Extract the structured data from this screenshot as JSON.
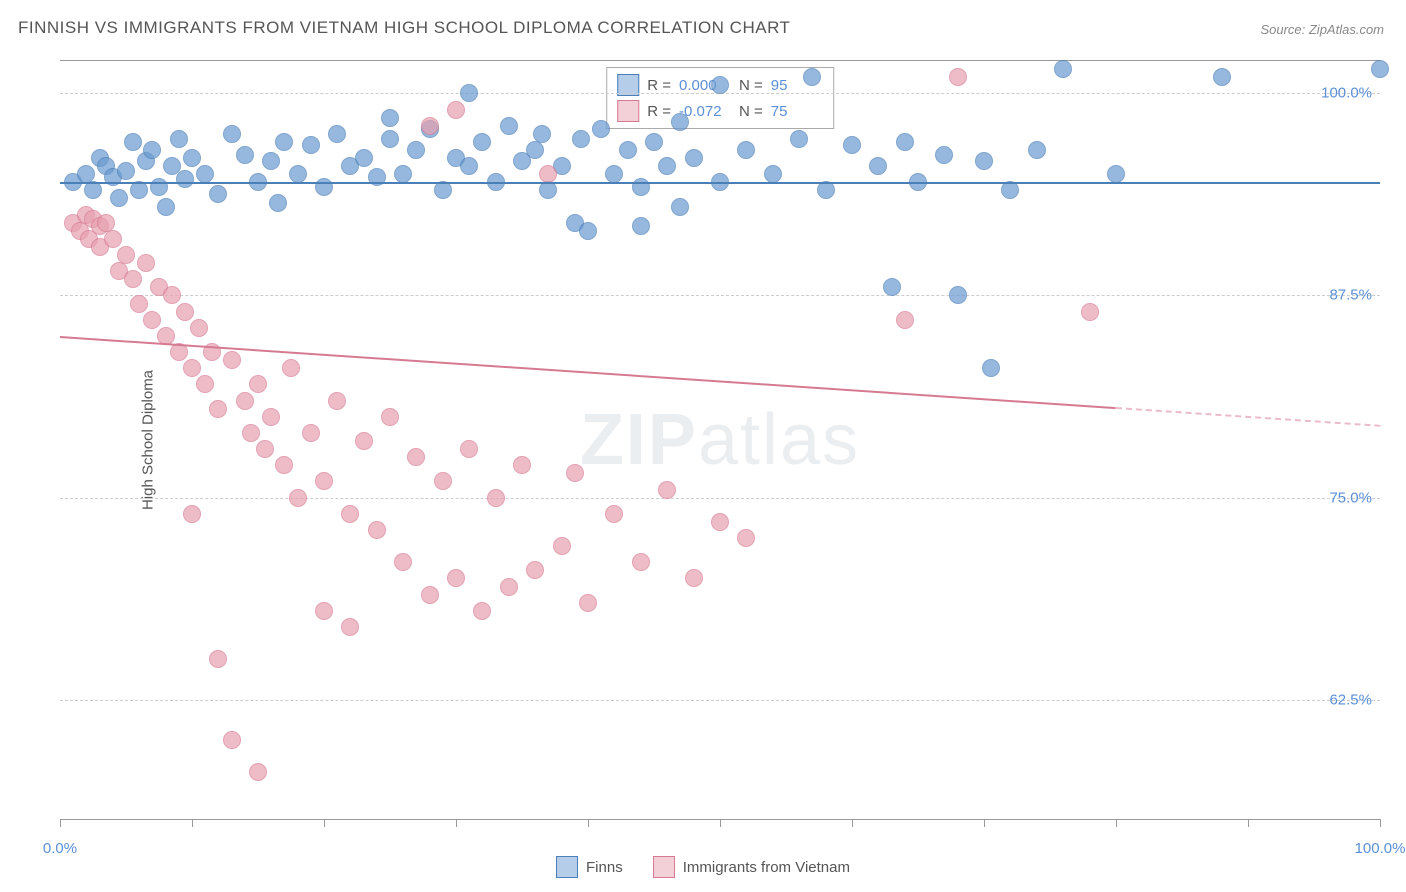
{
  "title": "FINNISH VS IMMIGRANTS FROM VIETNAM HIGH SCHOOL DIPLOMA CORRELATION CHART",
  "source": "Source: ZipAtlas.com",
  "y_axis_label": "High School Diploma",
  "watermark_bold": "ZIP",
  "watermark_light": "atlas",
  "chart": {
    "type": "scatter",
    "xlim": [
      0,
      100
    ],
    "ylim": [
      55,
      102
    ],
    "y_ticks": [
      {
        "v": 62.5,
        "label": "62.5%"
      },
      {
        "v": 75.0,
        "label": "75.0%"
      },
      {
        "v": 87.5,
        "label": "87.5%"
      },
      {
        "v": 100.0,
        "label": "100.0%"
      }
    ],
    "x_tick_positions": [
      0,
      10,
      20,
      30,
      40,
      50,
      60,
      70,
      80,
      90,
      100
    ],
    "x_tick_labels": [
      {
        "v": 0,
        "label": "0.0%"
      },
      {
        "v": 100,
        "label": "100.0%"
      }
    ],
    "grid_color": "#cccccc",
    "background_color": "#ffffff",
    "marker_radius": 9,
    "marker_stroke_width": 1.5,
    "marker_fill_opacity": 0.35,
    "series": [
      {
        "name": "Finns",
        "color": "#6b9bd1",
        "stroke": "#4a7fb8",
        "R": "0.000",
        "N": "95",
        "trend": {
          "x1": 0,
          "y1": 94.5,
          "x2": 100,
          "y2": 94.5,
          "dashed_from_x": null
        },
        "points": [
          [
            1,
            94.5
          ],
          [
            2,
            95
          ],
          [
            2.5,
            94
          ],
          [
            3,
            96
          ],
          [
            3.5,
            95.5
          ],
          [
            4,
            94.8
          ],
          [
            4.5,
            93.5
          ],
          [
            5,
            95.2
          ],
          [
            5.5,
            97
          ],
          [
            6,
            94
          ],
          [
            6.5,
            95.8
          ],
          [
            7,
            96.5
          ],
          [
            7.5,
            94.2
          ],
          [
            8,
            93
          ],
          [
            8.5,
            95.5
          ],
          [
            9,
            97.2
          ],
          [
            9.5,
            94.7
          ],
          [
            10,
            96
          ],
          [
            11,
            95
          ],
          [
            12,
            93.8
          ],
          [
            13,
            97.5
          ],
          [
            14,
            96.2
          ],
          [
            15,
            94.5
          ],
          [
            16,
            95.8
          ],
          [
            16.5,
            93.2
          ],
          [
            17,
            97
          ],
          [
            18,
            95
          ],
          [
            19,
            96.8
          ],
          [
            20,
            94.2
          ],
          [
            21,
            97.5
          ],
          [
            22,
            95.5
          ],
          [
            23,
            96
          ],
          [
            24,
            94.8
          ],
          [
            25,
            97.2
          ],
          [
            25,
            98.5
          ],
          [
            26,
            95
          ],
          [
            27,
            96.5
          ],
          [
            28,
            97.8
          ],
          [
            29,
            94
          ],
          [
            30,
            96
          ],
          [
            31,
            95.5
          ],
          [
            31,
            100
          ],
          [
            32,
            97
          ],
          [
            33,
            94.5
          ],
          [
            34,
            98
          ],
          [
            35,
            95.8
          ],
          [
            36,
            96.5
          ],
          [
            36.5,
            97.5
          ],
          [
            37,
            94
          ],
          [
            38,
            95.5
          ],
          [
            39,
            92
          ],
          [
            39.5,
            97.2
          ],
          [
            40,
            91.5
          ],
          [
            41,
            97.8
          ],
          [
            42,
            95
          ],
          [
            43,
            96.5
          ],
          [
            44,
            94.2
          ],
          [
            44,
            91.8
          ],
          [
            45,
            97
          ],
          [
            46,
            95.5
          ],
          [
            47,
            93
          ],
          [
            47,
            98.2
          ],
          [
            48,
            96
          ],
          [
            50,
            94.5
          ],
          [
            50,
            100.5
          ],
          [
            52,
            96.5
          ],
          [
            54,
            95
          ],
          [
            56,
            97.2
          ],
          [
            57,
            101
          ],
          [
            58,
            94
          ],
          [
            60,
            96.8
          ],
          [
            62,
            95.5
          ],
          [
            63,
            88
          ],
          [
            64,
            97
          ],
          [
            65,
            94.5
          ],
          [
            67,
            96.2
          ],
          [
            68,
            87.5
          ],
          [
            70,
            95.8
          ],
          [
            70.5,
            83
          ],
          [
            72,
            94
          ],
          [
            74,
            96.5
          ],
          [
            76,
            101.5
          ],
          [
            80,
            95
          ],
          [
            88,
            101
          ],
          [
            100,
            101.5
          ]
        ]
      },
      {
        "name": "Immigrants from Vietnam",
        "color": "#e8a0b0",
        "stroke": "#d67a92",
        "R": "-0.072",
        "N": "75",
        "trend": {
          "x1": 0,
          "y1": 85,
          "x2": 100,
          "y2": 79.5,
          "dashed_from_x": 80
        },
        "points": [
          [
            1,
            92
          ],
          [
            1.5,
            91.5
          ],
          [
            2,
            92.5
          ],
          [
            2.2,
            91
          ],
          [
            2.5,
            92.2
          ],
          [
            3,
            91.8
          ],
          [
            3,
            90.5
          ],
          [
            3.5,
            92
          ],
          [
            4,
            91
          ],
          [
            4.5,
            89
          ],
          [
            5,
            90
          ],
          [
            5.5,
            88.5
          ],
          [
            6,
            87
          ],
          [
            6.5,
            89.5
          ],
          [
            7,
            86
          ],
          [
            7.5,
            88
          ],
          [
            8,
            85
          ],
          [
            8.5,
            87.5
          ],
          [
            9,
            84
          ],
          [
            9.5,
            86.5
          ],
          [
            10,
            83
          ],
          [
            10.5,
            85.5
          ],
          [
            10,
            74
          ],
          [
            11,
            82
          ],
          [
            11.5,
            84
          ],
          [
            12,
            80.5
          ],
          [
            12,
            65
          ],
          [
            13,
            83.5
          ],
          [
            13,
            60
          ],
          [
            14,
            81
          ],
          [
            14.5,
            79
          ],
          [
            15,
            82
          ],
          [
            15.5,
            78
          ],
          [
            15,
            58
          ],
          [
            16,
            80
          ],
          [
            17,
            77
          ],
          [
            17.5,
            83
          ],
          [
            18,
            75
          ],
          [
            19,
            79
          ],
          [
            20,
            76
          ],
          [
            20,
            68
          ],
          [
            21,
            81
          ],
          [
            22,
            74
          ],
          [
            22,
            67
          ],
          [
            23,
            78.5
          ],
          [
            24,
            73
          ],
          [
            25,
            80
          ],
          [
            26,
            71
          ],
          [
            27,
            77.5
          ],
          [
            28,
            69
          ],
          [
            28,
            98
          ],
          [
            29,
            76
          ],
          [
            30,
            70
          ],
          [
            30,
            99
          ],
          [
            31,
            78
          ],
          [
            32,
            68
          ],
          [
            33,
            75
          ],
          [
            34,
            69.5
          ],
          [
            35,
            77
          ],
          [
            36,
            70.5
          ],
          [
            37,
            95
          ],
          [
            38,
            72
          ],
          [
            39,
            76.5
          ],
          [
            40,
            68.5
          ],
          [
            42,
            74
          ],
          [
            44,
            71
          ],
          [
            46,
            75.5
          ],
          [
            48,
            70
          ],
          [
            50,
            73.5
          ],
          [
            52,
            72.5
          ],
          [
            64,
            86
          ],
          [
            68,
            101
          ],
          [
            78,
            86.5
          ]
        ]
      }
    ]
  },
  "legend_bottom": [
    {
      "label": "Finns",
      "color": "#6b9bd1",
      "stroke": "#4a7fb8"
    },
    {
      "label": "Immigrants from Vietnam",
      "color": "#e8a0b0",
      "stroke": "#d67a92"
    }
  ]
}
